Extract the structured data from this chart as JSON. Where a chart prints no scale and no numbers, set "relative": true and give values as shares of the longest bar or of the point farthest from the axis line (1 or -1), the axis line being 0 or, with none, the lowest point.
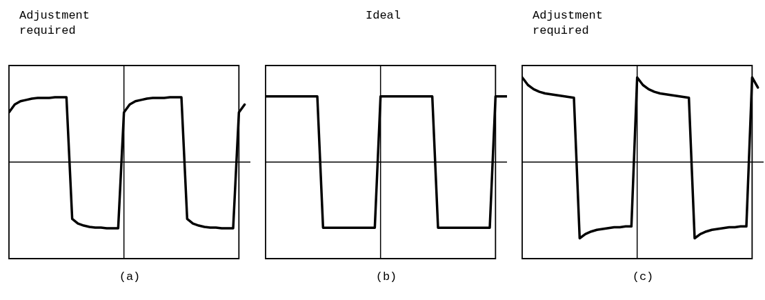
{
  "chart_data": [
    {
      "type": "line",
      "title": "Adjustment required",
      "xlabel": "(a)",
      "relative": true,
      "grid": true,
      "marker": "none",
      "line_style": "solid",
      "categories": [
        null,
        null,
        null,
        null,
        null,
        null,
        null,
        null,
        null,
        null,
        null,
        null,
        null,
        null,
        null,
        null,
        null,
        null,
        null,
        null,
        null,
        null,
        null,
        null,
        null,
        null,
        null,
        null,
        null,
        null,
        null,
        null,
        null,
        null,
        null,
        null,
        null,
        null,
        null,
        null,
        null,
        null,
        null
      ],
      "series": [
        {
          "color": "#000000",
          "values": [
            0.75,
            0.87,
            0.92,
            0.94,
            0.96,
            0.97,
            0.97,
            0.97,
            0.98,
            0.98,
            0.98,
            -0.86,
            -0.93,
            -0.96,
            -0.98,
            -0.99,
            -0.99,
            -1,
            -1,
            -1,
            0.75,
            0.87,
            0.92,
            0.94,
            0.96,
            0.97,
            0.97,
            0.97,
            0.98,
            0.98,
            0.98,
            -0.86,
            -0.93,
            -0.96,
            -0.98,
            -0.99,
            -0.99,
            -1,
            -1,
            -1,
            0.75,
            0.87,
            null
          ]
        }
      ]
    },
    {
      "type": "line",
      "title": "Ideal",
      "xlabel": "(b)",
      "relative": true,
      "grid": true,
      "marker": "none",
      "line_style": "solid",
      "categories": [
        null,
        null,
        null,
        null,
        null,
        null,
        null,
        null,
        null,
        null,
        null,
        null,
        null,
        null,
        null,
        null,
        null,
        null,
        null,
        null,
        null,
        null,
        null,
        null,
        null,
        null,
        null,
        null,
        null,
        null,
        null,
        null,
        null,
        null,
        null,
        null,
        null,
        null,
        null,
        null,
        null,
        null,
        null
      ],
      "series": [
        {
          "color": "#000000",
          "values": [
            1,
            1,
            1,
            1,
            1,
            1,
            1,
            1,
            1,
            1,
            -1,
            -1,
            -1,
            -1,
            -1,
            -1,
            -1,
            -1,
            -1,
            -1,
            1,
            1,
            1,
            1,
            1,
            1,
            1,
            1,
            1,
            1,
            -1,
            -1,
            -1,
            -1,
            -1,
            -1,
            -1,
            -1,
            -1,
            -1,
            1,
            1,
            1
          ]
        }
      ]
    },
    {
      "type": "line",
      "title": "Adjustment required",
      "xlabel": "(c)",
      "relative": true,
      "grid": true,
      "marker": "none",
      "line_style": "solid",
      "categories": [
        null,
        null,
        null,
        null,
        null,
        null,
        null,
        null,
        null,
        null,
        null,
        null,
        null,
        null,
        null,
        null,
        null,
        null,
        null,
        null,
        null,
        null,
        null,
        null,
        null,
        null,
        null,
        null,
        null,
        null,
        null,
        null,
        null,
        null,
        null,
        null,
        null,
        null,
        null,
        null,
        null,
        null,
        null
      ],
      "series": [
        {
          "color": "#000000",
          "values": [
            1,
            0.91,
            0.86,
            0.83,
            0.81,
            0.8,
            0.79,
            0.78,
            0.77,
            0.76,
            -0.9,
            -0.85,
            -0.82,
            -0.8,
            -0.79,
            -0.78,
            -0.77,
            -0.77,
            -0.76,
            -0.76,
            1,
            0.91,
            0.86,
            0.83,
            0.81,
            0.8,
            0.79,
            0.78,
            0.77,
            0.76,
            -0.9,
            -0.85,
            -0.82,
            -0.8,
            -0.79,
            -0.78,
            -0.77,
            -0.77,
            -0.76,
            -0.76,
            1,
            0.88,
            null
          ]
        }
      ]
    }
  ]
}
